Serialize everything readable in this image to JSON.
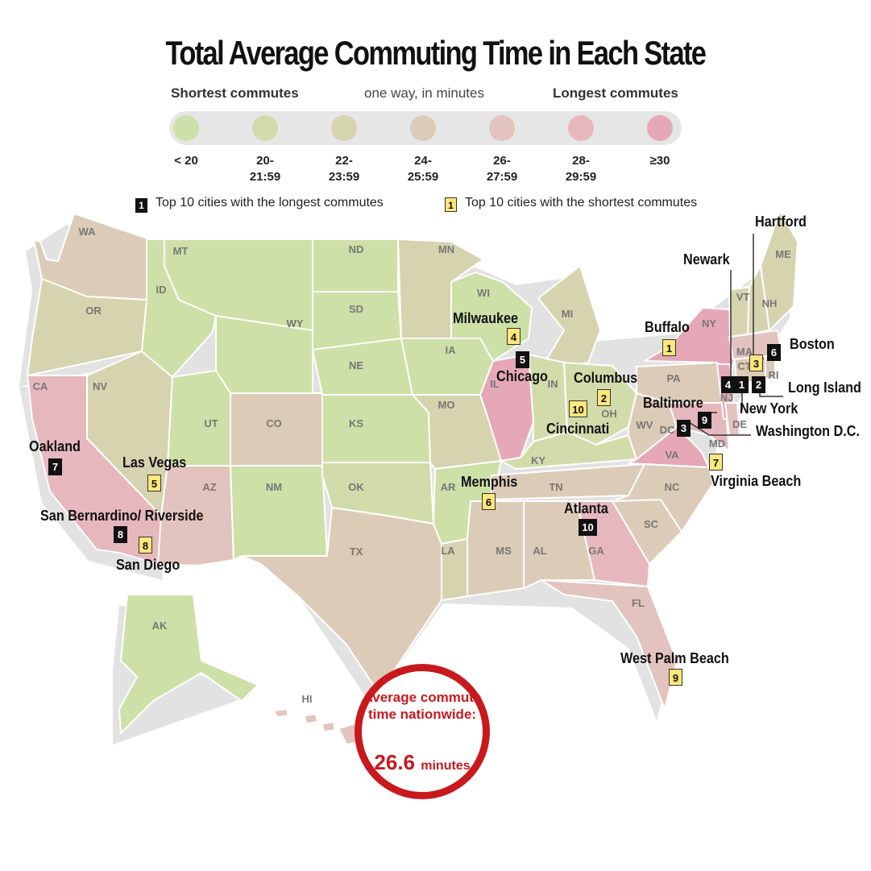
{
  "title": "Total Average Commuting Time in Each State",
  "legend": {
    "shortest_label": "Shortest commutes",
    "subtitle": "one way, in minutes",
    "longest_label": "Longest commutes",
    "bins": [
      {
        "label": "< 20",
        "color": "#cde0a7"
      },
      {
        "label": "20-\n21:59",
        "color": "#d2dcaa"
      },
      {
        "label": "22-\n23:59",
        "color": "#d6d3af"
      },
      {
        "label": "24-\n25:59",
        "color": "#dccbb7"
      },
      {
        "label": "26-\n27:59",
        "color": "#e3c3bd"
      },
      {
        "label": "28-\n29:59",
        "color": "#e6b8bd"
      },
      {
        "label": "≥30",
        "color": "#e6a8b6"
      }
    ],
    "longest_key": {
      "box": "1",
      "text": "Top 10 cities with the longest commutes"
    },
    "shortest_key": {
      "box": "1",
      "text": "Top 10 cities with the shortest commutes"
    }
  },
  "states": {
    "WA": "WA",
    "OR": "OR",
    "CA": "CA",
    "NV": "NV",
    "ID": "ID",
    "MT": "MT",
    "WY": "WY",
    "UT": "UT",
    "AZ": "AZ",
    "CO": "CO",
    "NM": "NM",
    "ND": "ND",
    "SD": "SD",
    "NE": "NE",
    "KS": "KS",
    "OK": "OK",
    "TX": "TX",
    "MN": "MN",
    "IA": "IA",
    "MO": "MO",
    "AR": "AR",
    "LA": "LA",
    "WI": "WI",
    "IL": "IL",
    "MI": "MI",
    "IN": "IN",
    "OH": "OH",
    "KY": "KY",
    "TN": "TN",
    "MS": "MS",
    "AL": "AL",
    "GA": "GA",
    "FL": "FL",
    "SC": "SC",
    "NC": "NC",
    "VA": "VA",
    "WV": "WV",
    "PA": "PA",
    "NY": "NY",
    "MD": "MD",
    "DE": "DE",
    "DC": "DC",
    "NJ": "NJ",
    "CT": "CT",
    "RI": "RI",
    "MA": "MA",
    "VT": "VT",
    "NH": "NH",
    "ME": "ME",
    "AK": "AK",
    "HI": "HI"
  },
  "cities": {
    "hartford": "Hartford",
    "newark": "Newark",
    "buffalo": "Buffalo",
    "boston": "Boston",
    "milwaukee": "Milwaukee",
    "chicago": "Chicago",
    "columbus": "Columbus",
    "long_island": "Long Island",
    "new_york": "New York",
    "baltimore": "Baltimore",
    "cincinnati": "Cincinnati",
    "washington": "Washington D.C.",
    "oakland": "Oakland",
    "las_vegas": "Las Vegas",
    "memphis": "Memphis",
    "virginia_beach": "Virginia Beach",
    "san_bernardino": "San Bernardino/ Riverside",
    "atlanta": "Atlanta",
    "san_diego": "San Diego",
    "west_palm_beach": "West Palm Beach"
  },
  "ranks": {
    "buffalo": "1",
    "hartford": "3",
    "milwaukee": "4",
    "columbus": "2",
    "cincinnati": "10",
    "las_vegas": "5",
    "memphis": "6",
    "virginia_beach": "7",
    "san_diego": "8",
    "west_palm_beach": "9",
    "new_york": "1",
    "long_island": "2",
    "washington": "3",
    "newark": "4",
    "chicago": "5",
    "boston": "6",
    "oakland": "7",
    "san_bernardino": "8",
    "baltimore": "9",
    "atlanta": "10"
  },
  "average": {
    "text": "Average commute time nationwide:",
    "value": "26.6",
    "unit": "minutes"
  }
}
